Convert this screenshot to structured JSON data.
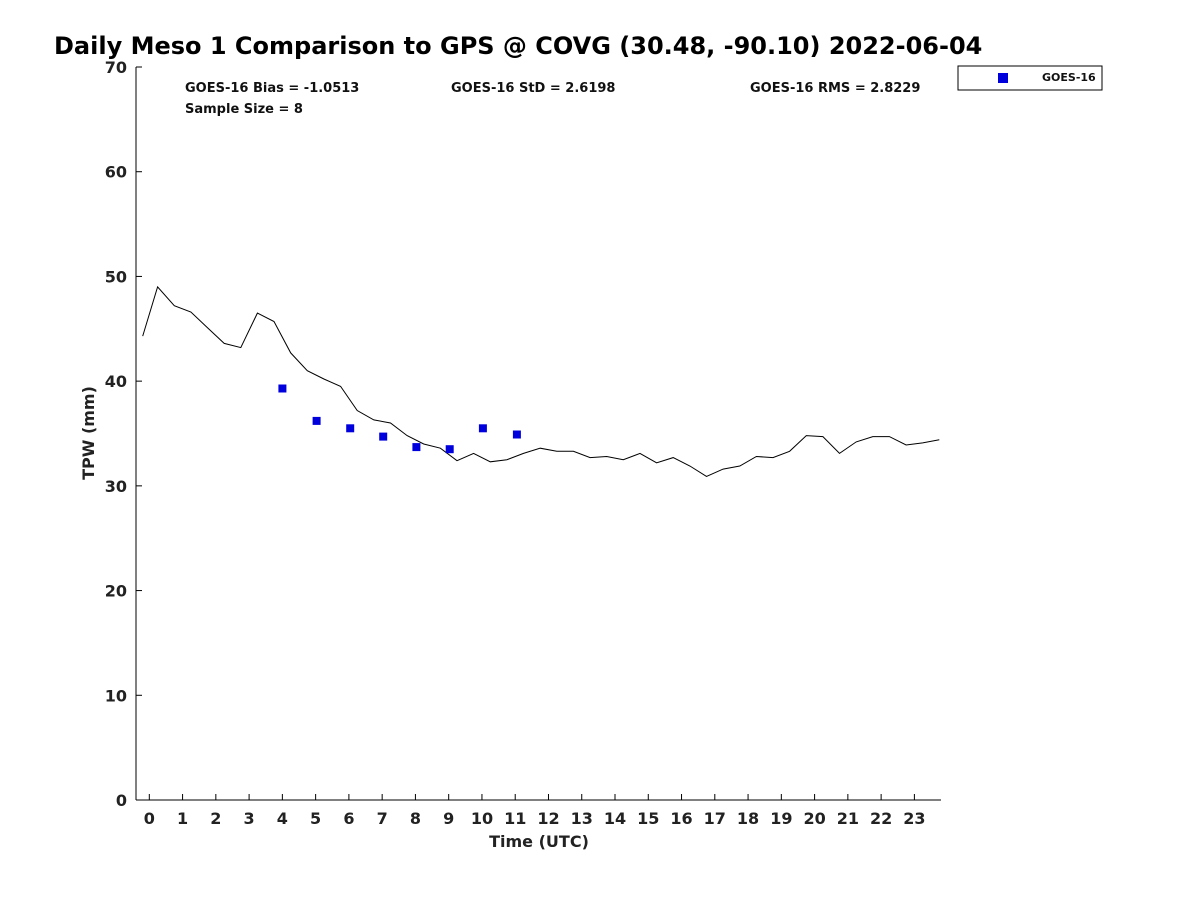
{
  "chart_data": {
    "type": "scatter",
    "title": "Daily Meso 1 Comparison to GPS @ COVG (30.48, -90.10) 2022-06-04",
    "xlabel": "Time (UTC)",
    "ylabel": "TPW (mm)",
    "xlim": [
      -0.4,
      23.8
    ],
    "ylim": [
      0,
      70
    ],
    "xticks": [
      "0",
      "1",
      "2",
      "3",
      "4",
      "5",
      "6",
      "7",
      "8",
      "9",
      "10",
      "11",
      "12",
      "13",
      "14",
      "15",
      "16",
      "17",
      "18",
      "19",
      "20",
      "21",
      "22",
      "23"
    ],
    "yticks": [
      "0",
      "10",
      "20",
      "30",
      "40",
      "50",
      "60",
      "70"
    ],
    "grid": false,
    "legend_position": "outside-top-right",
    "stats": {
      "bias": "GOES-16 Bias = -1.0513",
      "std": "GOES-16 StD = 2.6198",
      "rms": "GOES-16 RMS = 2.8229",
      "sample": "Sample Size = 8"
    },
    "series": [
      {
        "name": "GOES-16",
        "kind": "scatter",
        "marker": "square",
        "color": "#0000dd",
        "x": [
          4.0,
          5.03,
          6.04,
          7.03,
          8.03,
          9.03,
          10.03,
          11.05
        ],
        "y": [
          39.3,
          36.2,
          35.5,
          34.7,
          33.7,
          33.5,
          35.5,
          34.9
        ]
      },
      {
        "kind": "line",
        "color": "#000000",
        "x": [
          -0.2,
          0.25,
          0.75,
          1.25,
          1.75,
          2.25,
          2.75,
          3.25,
          3.75,
          4.25,
          4.75,
          5.25,
          5.75,
          6.25,
          6.75,
          7.25,
          7.75,
          8.25,
          8.75,
          9.25,
          9.75,
          10.25,
          10.75,
          11.25,
          11.75,
          12.25,
          12.75,
          13.25,
          13.75,
          14.25,
          14.75,
          15.25,
          15.75,
          16.25,
          16.75,
          17.25,
          17.75,
          18.25,
          18.75,
          19.25,
          19.75,
          20.25,
          20.75,
          21.25,
          21.75,
          22.25,
          22.75,
          23.25,
          23.75
        ],
        "y": [
          44.3,
          49.0,
          47.2,
          46.6,
          45.1,
          43.6,
          43.2,
          46.5,
          45.7,
          42.7,
          41.0,
          40.2,
          39.5,
          37.2,
          36.3,
          36.0,
          34.8,
          34.0,
          33.6,
          32.4,
          33.1,
          32.3,
          32.5,
          33.1,
          33.6,
          33.3,
          33.3,
          32.7,
          32.8,
          32.5,
          33.1,
          32.2,
          32.7,
          31.9,
          30.9,
          31.6,
          31.9,
          32.8,
          32.7,
          33.3,
          34.8,
          34.7,
          33.1,
          34.2,
          34.7,
          34.7,
          33.9,
          34.1,
          34.4
        ]
      }
    ]
  }
}
